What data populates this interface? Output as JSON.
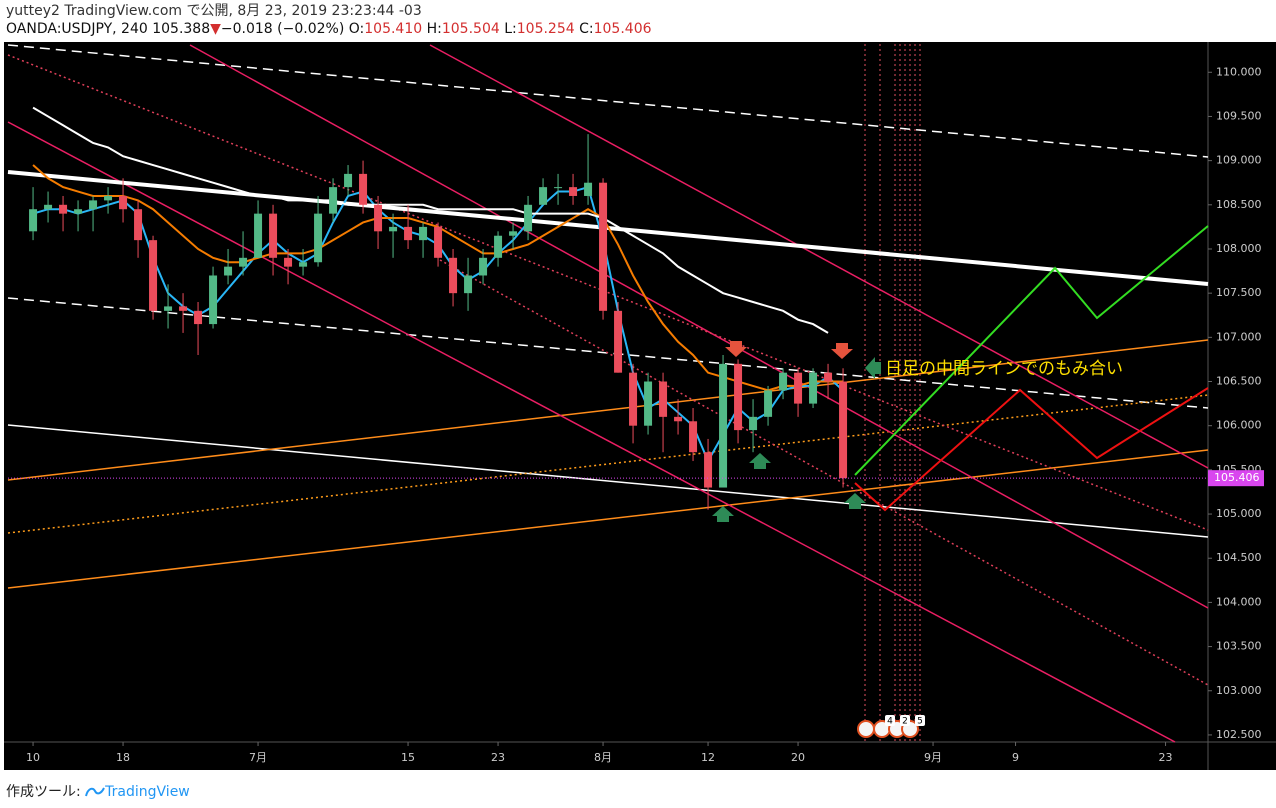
{
  "header": {
    "title": "yuttey2 TradingView.com で公開, 8月 23, 2019 23:23:44 -03",
    "symbol": "OANDA:USDJPY, 240",
    "last": "105.388",
    "change_arrow": "▼",
    "change": "−0.018 (−0.02%)",
    "open_label": "O:",
    "open": "105.410",
    "high_label": "H:",
    "high": "105.504",
    "low_label": "L:",
    "low": "105.254",
    "close_label": "C:",
    "close": "105.406"
  },
  "chart_data": {
    "type": "candlestick",
    "annotation": "日足の中間ラインでのもみ合い",
    "event_badges": [
      "4",
      "2",
      "5"
    ],
    "up_color": "#53b987",
    "down_color": "#eb4d5c",
    "price_line_color": "#d946ef",
    "x": [
      0,
      1,
      2,
      3,
      4,
      5,
      6,
      7,
      8,
      9,
      10,
      11,
      12,
      13,
      14,
      15,
      16,
      17,
      18,
      19,
      20,
      21,
      22,
      23,
      24,
      25,
      26,
      27,
      28,
      29,
      30,
      31,
      32,
      33,
      34,
      35,
      36,
      37,
      38,
      39,
      40,
      41,
      42,
      43,
      44,
      45,
      46,
      47,
      48,
      49,
      50,
      51,
      52,
      53,
      54
    ],
    "open": [
      108.2,
      108.45,
      108.5,
      108.4,
      108.45,
      108.55,
      108.6,
      108.45,
      108.1,
      107.3,
      107.35,
      107.3,
      107.15,
      107.7,
      107.8,
      107.9,
      108.4,
      107.9,
      107.8,
      107.85,
      108.4,
      108.7,
      108.85,
      108.5,
      108.2,
      108.25,
      108.1,
      108.25,
      107.9,
      107.5,
      107.7,
      107.9,
      108.15,
      108.2,
      108.5,
      108.7,
      108.7,
      108.6,
      108.75,
      107.3,
      106.6,
      106.0,
      106.5,
      106.1,
      106.05,
      105.7,
      105.3,
      106.7,
      105.95,
      106.1,
      106.4,
      106.6,
      106.25,
      106.6,
      106.5
    ],
    "high": [
      108.7,
      108.65,
      108.6,
      108.55,
      108.6,
      108.7,
      108.8,
      108.55,
      108.15,
      107.6,
      107.5,
      107.4,
      107.8,
      108.0,
      108.2,
      108.55,
      108.5,
      108.0,
      108.0,
      108.6,
      108.8,
      108.95,
      109.0,
      108.6,
      108.4,
      108.5,
      108.3,
      108.3,
      108.0,
      107.9,
      108.0,
      108.2,
      108.3,
      108.6,
      108.8,
      108.85,
      108.85,
      109.3,
      108.8,
      107.4,
      106.7,
      106.6,
      106.6,
      106.3,
      106.2,
      105.85,
      106.8,
      106.75,
      106.3,
      106.45,
      106.65,
      106.65,
      106.65,
      106.7,
      106.65
    ],
    "low": [
      108.1,
      108.3,
      108.2,
      108.2,
      108.2,
      108.4,
      108.3,
      107.9,
      107.2,
      107.1,
      107.05,
      106.8,
      107.1,
      107.6,
      107.7,
      107.9,
      107.7,
      107.6,
      107.7,
      107.8,
      108.3,
      108.6,
      108.4,
      108.0,
      107.9,
      108.0,
      107.9,
      107.8,
      107.35,
      107.3,
      107.6,
      107.8,
      108.0,
      108.1,
      108.5,
      108.5,
      108.5,
      108.5,
      107.2,
      106.6,
      105.8,
      105.9,
      105.7,
      105.9,
      105.6,
      105.05,
      105.3,
      105.8,
      105.7,
      106.0,
      106.3,
      106.1,
      106.2,
      106.3,
      105.3
    ],
    "close": [
      108.45,
      108.5,
      108.4,
      108.45,
      108.55,
      108.6,
      108.45,
      108.1,
      107.3,
      107.35,
      107.3,
      107.15,
      107.7,
      107.8,
      107.9,
      108.4,
      107.9,
      107.8,
      107.85,
      108.4,
      108.7,
      108.85,
      108.5,
      108.2,
      108.25,
      108.1,
      108.25,
      107.9,
      107.5,
      107.7,
      107.9,
      108.15,
      108.2,
      108.5,
      108.7,
      108.7,
      108.6,
      108.75,
      107.3,
      106.6,
      106.0,
      106.5,
      106.1,
      106.05,
      105.7,
      105.3,
      106.7,
      105.95,
      106.1,
      106.4,
      106.6,
      106.25,
      106.6,
      106.5,
      105.406
    ],
    "lines": [
      {
        "color": "#29b6f6",
        "values": [
          108.4,
          108.45,
          108.45,
          108.4,
          108.45,
          108.5,
          108.55,
          108.4,
          107.9,
          107.5,
          107.35,
          107.25,
          107.35,
          107.55,
          107.75,
          107.95,
          108.1,
          107.95,
          107.85,
          107.95,
          108.3,
          108.6,
          108.65,
          108.45,
          108.3,
          108.2,
          108.15,
          108.05,
          107.8,
          107.65,
          107.75,
          107.95,
          108.1,
          108.3,
          108.5,
          108.65,
          108.65,
          108.7,
          108.1,
          107.3,
          106.6,
          106.2,
          106.3,
          106.15,
          106.0,
          105.6,
          105.9,
          106.2,
          106.05,
          106.15,
          106.4,
          106.45,
          106.45,
          106.55,
          106.4
        ]
      },
      {
        "color": "#f57c00",
        "values": [
          108.95,
          108.8,
          108.7,
          108.65,
          108.6,
          108.6,
          108.6,
          108.55,
          108.45,
          108.3,
          108.15,
          108.0,
          107.9,
          107.85,
          107.85,
          107.9,
          107.95,
          107.95,
          107.95,
          108.0,
          108.1,
          108.2,
          108.3,
          108.35,
          108.35,
          108.35,
          108.3,
          108.25,
          108.15,
          108.05,
          107.95,
          107.95,
          108.0,
          108.05,
          108.15,
          108.25,
          108.35,
          108.45,
          108.35,
          108.05,
          107.7,
          107.4,
          107.15,
          106.95,
          106.8,
          106.6,
          106.55,
          106.5,
          106.45,
          106.4,
          106.45,
          106.45,
          106.5,
          106.5,
          106.5
        ]
      },
      {
        "color": "#ffffff",
        "values": [
          109.6,
          109.5,
          109.4,
          109.3,
          109.2,
          109.15,
          109.05,
          109.0,
          108.95,
          108.9,
          108.85,
          108.8,
          108.75,
          108.7,
          108.65,
          108.6,
          108.6,
          108.55,
          108.55,
          108.55,
          108.55,
          108.5,
          108.5,
          108.5,
          108.5,
          108.5,
          108.5,
          108.45,
          108.45,
          108.45,
          108.45,
          108.45,
          108.45,
          108.4,
          108.4,
          108.4,
          108.4,
          108.4,
          108.35,
          108.25,
          108.15,
          108.05,
          107.95,
          107.8,
          107.7,
          107.6,
          107.5,
          107.45,
          107.4,
          107.35,
          107.3,
          107.2,
          107.15,
          107.05,
          null
        ]
      }
    ],
    "xlim": [
      -1.67,
      78.33
    ],
    "xticks": [
      {
        "value": 0,
        "label": "10"
      },
      {
        "value": 6,
        "label": "18"
      },
      {
        "value": 15,
        "label": "7月"
      },
      {
        "value": 25,
        "label": "15"
      },
      {
        "value": 31,
        "label": "23"
      },
      {
        "value": 38,
        "label": "8月"
      },
      {
        "value": 45,
        "label": "12"
      },
      {
        "value": 51,
        "label": "20"
      },
      {
        "value": 60,
        "label": "9月"
      },
      {
        "value": 65.5,
        "label": "9"
      },
      {
        "value": 75.5,
        "label": "23"
      }
    ],
    "ylim": [
      102.42,
      110.32
    ],
    "yticks": [
      {
        "value": 110,
        "label": "110.000"
      },
      {
        "value": 109.5,
        "label": "109.500"
      },
      {
        "value": 109,
        "label": "109.000"
      },
      {
        "value": 108.5,
        "label": "108.500"
      },
      {
        "value": 108,
        "label": "108.000"
      },
      {
        "value": 107.5,
        "label": "107.500"
      },
      {
        "value": 107,
        "label": "107.000"
      },
      {
        "value": 106.5,
        "label": "106.500"
      },
      {
        "value": 106,
        "label": "106.000"
      },
      {
        "value": 105.5,
        "label": "105.500"
      },
      {
        "value": 105,
        "label": "105.000"
      },
      {
        "value": 104.5,
        "label": "104.500"
      },
      {
        "value": 104,
        "label": "104.000"
      },
      {
        "value": 103.5,
        "label": "103.500"
      },
      {
        "value": 103,
        "label": "103.000"
      },
      {
        "value": 102.5,
        "label": "102.500"
      }
    ]
  },
  "footer": {
    "made_with": "作成ツール:",
    "brand": "TradingView"
  }
}
